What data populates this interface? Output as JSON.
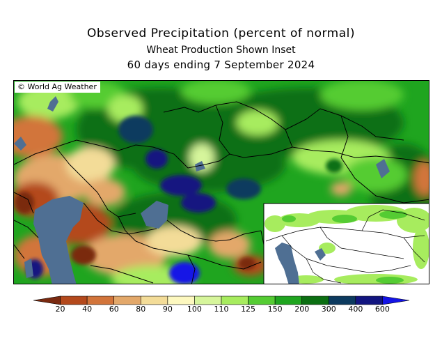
{
  "title": "Observed Precipitation (percent of normal)",
  "subtitle": "Wheat Production Shown Inset",
  "period": "60 days ending 7 September 2024",
  "credit": "© World Ag Weather",
  "legend": {
    "labels": [
      "20",
      "40",
      "60",
      "80",
      "90",
      "100",
      "110",
      "125",
      "150",
      "200",
      "300",
      "400",
      "600"
    ],
    "colors": [
      "#7a2a10",
      "#b4491c",
      "#d2743a",
      "#e3a86a",
      "#f3dc98",
      "#fdf8bf",
      "#d6f59b",
      "#a7ec5e",
      "#55cc33",
      "#1fa51f",
      "#0b6f12",
      "#0c3a5f",
      "#121580",
      "#1414e6"
    ]
  }
}
